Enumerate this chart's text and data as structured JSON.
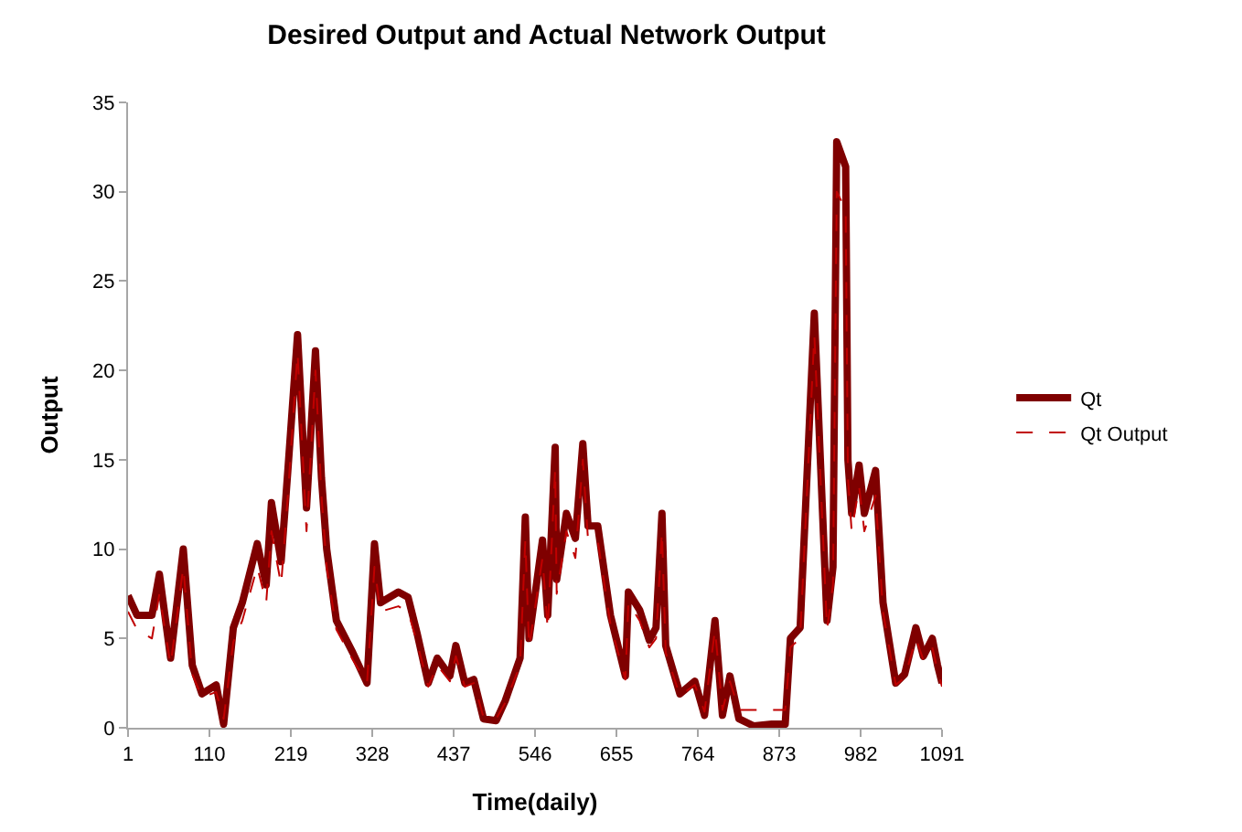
{
  "chart_data": {
    "type": "line",
    "title": "Desired Output and Actual Network Output",
    "xlabel": "Time(daily)",
    "ylabel": "Output",
    "x": [
      1,
      13,
      33,
      43,
      58,
      75,
      87,
      100,
      119,
      129,
      142,
      154,
      174,
      186,
      193,
      206,
      215,
      228,
      240,
      252,
      260,
      267,
      280,
      302,
      321,
      331,
      339,
      363,
      376,
      388,
      403,
      415,
      432,
      440,
      452,
      464,
      477,
      494,
      506,
      526,
      533,
      538,
      556,
      563,
      573,
      575,
      588,
      600,
      610,
      617,
      630,
      647,
      667,
      671,
      686,
      699,
      708,
      716,
      721,
      740,
      760,
      773,
      787,
      797,
      807,
      819,
      839,
      863,
      881,
      888,
      901,
      920,
      937,
      945,
      950,
      962,
      965,
      970,
      980,
      987,
      1002,
      1012,
      1029,
      1041,
      1056,
      1066,
      1078,
      1085,
      1091
    ],
    "series": [
      {
        "name": "Qt",
        "color": "#7f0000",
        "line_style": "solid",
        "values": [
          7.4,
          6.3,
          6.3,
          8.6,
          3.9,
          10,
          3.5,
          1.9,
          2.4,
          0.2,
          5.6,
          7.0,
          10.3,
          8,
          12.6,
          9.3,
          14.4,
          22,
          12.3,
          21.1,
          14,
          10,
          6,
          4.2,
          2.5,
          10.3,
          7.0,
          7.6,
          7.3,
          5.3,
          2.5,
          3.9,
          2.9,
          4.6,
          2.5,
          2.7,
          0.5,
          0.4,
          1.5,
          3.9,
          11.8,
          5,
          10.5,
          6.3,
          15.7,
          8.3,
          12,
          10.6,
          15.9,
          11.3,
          11.3,
          6.3,
          2.9,
          7.6,
          6.6,
          4.9,
          5.6,
          12,
          4.6,
          1.9,
          2.6,
          0.7,
          6.0,
          0.7,
          2.9,
          0.5,
          0.1,
          0.2,
          0.2,
          5.0,
          5.6,
          23.2,
          6,
          9,
          32.8,
          31.4,
          15,
          12,
          14.7,
          12,
          14.4,
          7,
          2.5,
          3.0,
          5.6,
          4,
          5,
          3.5,
          2.5
        ]
      },
      {
        "name": "Qt Output",
        "color": "#c00000",
        "line_style": "dashed",
        "values": [
          6.5,
          5.5,
          5.0,
          7.5,
          3.5,
          9,
          3.0,
          1.7,
          2.0,
          0.5,
          4.8,
          6.0,
          9.0,
          7,
          11.0,
          8.0,
          13.0,
          21,
          11.0,
          20.0,
          13,
          9,
          5.5,
          3.8,
          2.5,
          9.0,
          6.5,
          6.8,
          6.5,
          4.8,
          2.3,
          3.5,
          2.6,
          4.0,
          2.3,
          2.5,
          0.6,
          0.5,
          1.4,
          3.5,
          10.5,
          4.5,
          9.5,
          5.5,
          14.5,
          7.5,
          11,
          9.5,
          15.0,
          10.5,
          10.5,
          5.8,
          2.7,
          7.0,
          6.0,
          4.5,
          5.0,
          11,
          4.2,
          1.8,
          2.4,
          0.9,
          5.5,
          1.0,
          2.6,
          1.0,
          1.0,
          1.0,
          1.0,
          4.5,
          5.0,
          22.0,
          5.5,
          8,
          30.0,
          29.0,
          14,
          11,
          13.5,
          11,
          13.0,
          6.5,
          2.4,
          2.8,
          5.0,
          3.8,
          4.5,
          3.2,
          2.3
        ]
      }
    ],
    "xlim": [
      1,
      1091
    ],
    "xticks": [
      1,
      110,
      219,
      328,
      437,
      546,
      655,
      764,
      873,
      982,
      1091
    ],
    "ylim": [
      0,
      35
    ],
    "yticks": [
      0,
      5,
      10,
      15,
      20,
      25,
      30,
      35
    ],
    "grid": false,
    "legend": "right",
    "marker": "none"
  }
}
